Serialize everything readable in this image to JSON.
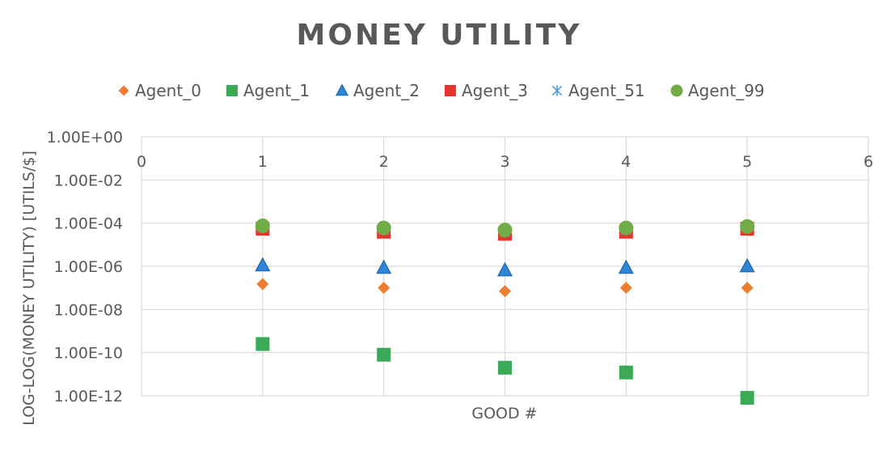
{
  "chart_data": {
    "type": "scatter",
    "title": "MONEY UTILITY",
    "xlabel": "GOOD #",
    "ylabel": "LOG-LOG(MONEY UTILITY) [UTILS/$]",
    "xlim": [
      0,
      6
    ],
    "ylim": [
      1e-12,
      1
    ],
    "y_scale": "log",
    "grid": true,
    "legend_position": "top",
    "x_ticks": [
      "0",
      "1",
      "2",
      "3",
      "4",
      "5",
      "6"
    ],
    "y_ticks": [
      "1.00E+00",
      "1.00E-02",
      "1.00E-04",
      "1.00E-06",
      "1.00E-08",
      "1.00E-10",
      "1.00E-12"
    ],
    "x": [
      1,
      2,
      3,
      4,
      5
    ],
    "series": [
      {
        "name": "Agent_0",
        "marker": "diamond",
        "color": "#ED7D31",
        "values": [
          1.5e-07,
          1e-07,
          7e-08,
          1e-07,
          1e-07
        ]
      },
      {
        "name": "Agent_1",
        "marker": "square",
        "color": "#3BAA57",
        "values": [
          2.5e-10,
          8e-11,
          2e-11,
          1.2e-11,
          8e-13
        ]
      },
      {
        "name": "Agent_2",
        "marker": "triangle",
        "color": "#2E86D6",
        "values": [
          1.1e-06,
          8.5e-07,
          6.5e-07,
          8.5e-07,
          1e-06
        ]
      },
      {
        "name": "Agent_3",
        "marker": "square",
        "color": "#E8352B",
        "values": [
          5.5e-05,
          4e-05,
          3.2e-05,
          4e-05,
          5.5e-05
        ]
      },
      {
        "name": "Agent_51",
        "marker": "asterisk",
        "color": "#5B9BD5",
        "values": [
          6.5e-05,
          5e-05,
          4e-05,
          5e-05,
          6.5e-05
        ]
      },
      {
        "name": "Agent_99",
        "marker": "circle",
        "color": "#70AD47",
        "values": [
          7.5e-05,
          6e-05,
          4.8e-05,
          6e-05,
          7e-05
        ]
      }
    ]
  }
}
